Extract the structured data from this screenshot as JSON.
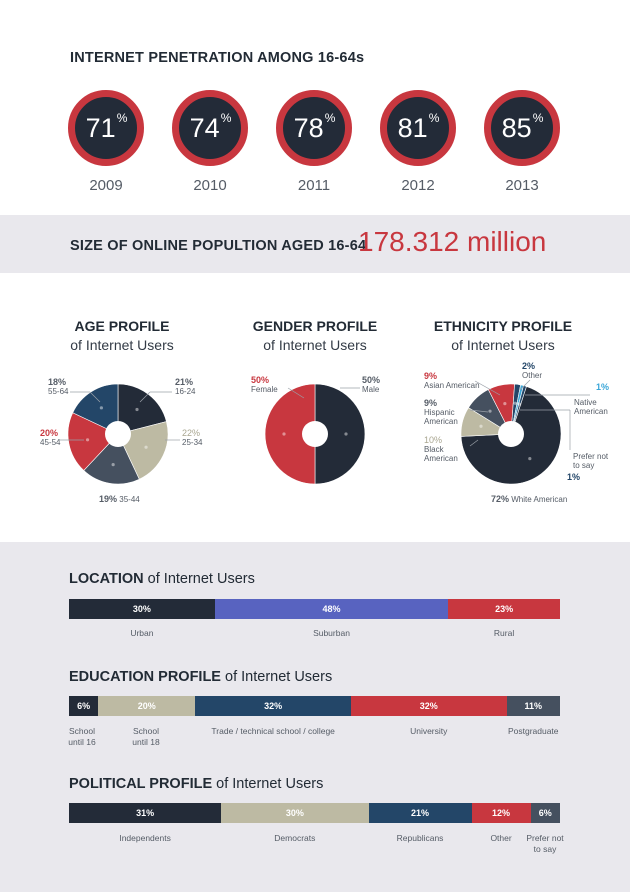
{
  "penetration": {
    "title": "INTERNET PENETRATION AMONG 16-64s",
    "items": [
      {
        "value": "71",
        "year": "2009"
      },
      {
        "value": "74",
        "year": "2010"
      },
      {
        "value": "78",
        "year": "2011"
      },
      {
        "value": "81",
        "year": "2012"
      },
      {
        "value": "85",
        "year": "2013"
      }
    ],
    "unit": "%"
  },
  "online": {
    "label": "SIZE OF ONLINE POPULTION AGED 16-64",
    "value": "178.312 million"
  },
  "age": {
    "title": "AGE PROFILE",
    "sub": "of Internet Users"
  },
  "gender": {
    "title": "GENDER PROFILE",
    "sub": "of Internet Users"
  },
  "ethnicity": {
    "title": "ETHNICITY PROFILE",
    "sub": "of Internet Users"
  },
  "location": {
    "bold": "LOCATION",
    "rest": " of Internet Users"
  },
  "education": {
    "bold": "EDUCATION PROFILE",
    "rest": " of Internet Users"
  },
  "political": {
    "bold": "POLITICAL PROFILE",
    "rest": " of Internet Users"
  },
  "colors": {
    "dark": "#232b38",
    "red": "#c8373f",
    "beige": "#bdbaa3",
    "slate": "#45505f",
    "navy": "#234668",
    "blue": "#5863c0",
    "ring": "#c8373f"
  },
  "chart_data": [
    {
      "type": "pie",
      "title": "AGE PROFILE",
      "categories": [
        "16-24",
        "25-34",
        "35-44",
        "45-54",
        "55-64"
      ],
      "values": [
        21,
        22,
        19,
        20,
        18
      ],
      "labels": [
        "21%",
        "22%",
        "19%",
        "20%",
        "18%"
      ]
    },
    {
      "type": "pie",
      "title": "GENDER PROFILE",
      "categories": [
        "Male",
        "Female"
      ],
      "values": [
        50,
        50
      ],
      "labels": [
        "50%",
        "50%"
      ]
    },
    {
      "type": "pie",
      "title": "ETHNICITY PROFILE",
      "categories": [
        "White American",
        "Black American",
        "Hispanic American",
        "Asian American",
        "Other",
        "Native American",
        "Prefer not to say"
      ],
      "values": [
        72,
        10,
        9,
        9,
        2,
        1,
        1
      ],
      "labels": [
        "72%",
        "10%",
        "9%",
        "9%",
        "2%",
        "1%",
        "1%"
      ]
    },
    {
      "type": "bar",
      "title": "LOCATION of Internet Users",
      "categories": [
        "Urban",
        "Suburban",
        "Rural"
      ],
      "values": [
        30,
        48,
        23
      ],
      "labels": [
        "30%",
        "48%",
        "23%"
      ]
    },
    {
      "type": "bar",
      "title": "EDUCATION PROFILE of Internet Users",
      "categories": [
        "School until 16",
        "School until 18",
        "Trade / technical school / college",
        "University",
        "Postgraduate"
      ],
      "values": [
        6,
        20,
        32,
        32,
        11
      ],
      "labels": [
        "6%",
        "20%",
        "32%",
        "32%",
        "11%"
      ]
    },
    {
      "type": "bar",
      "title": "POLITICAL PROFILE of Internet Users",
      "categories": [
        "Independents",
        "Democrats",
        "Republicans",
        "Other",
        "Prefer not to say"
      ],
      "values": [
        31,
        30,
        21,
        12,
        6
      ],
      "labels": [
        "31%",
        "30%",
        "21%",
        "12%",
        "6%"
      ]
    }
  ]
}
